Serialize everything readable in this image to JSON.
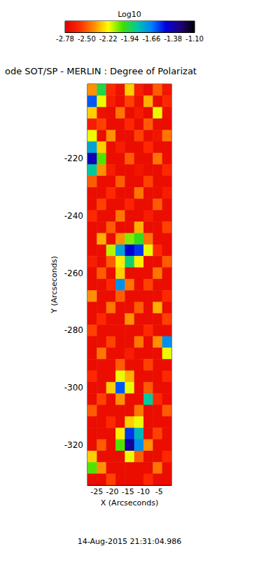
{
  "chart_data": {
    "type": "heatmap",
    "title": "ode SOT/SP - MERLIN : Degree of Polarizat",
    "x_label": "X (Arcseconds)",
    "y_label": "Y (Arcseconds)",
    "annotation": "14-Aug-2015 21:31:04.986",
    "colorbar_label": "Log10",
    "colorbar_range": [
      -2.78,
      -1.1
    ],
    "colorbar_ticks": [
      -2.78,
      {
        "value": -2.5,
        "label": "-2.50"
      },
      -2.22,
      -1.94,
      -1.66,
      -1.38,
      {
        "value": -1.1,
        "label": "-1.10"
      }
    ],
    "xlim": [
      -28,
      -1
    ],
    "ylim": [
      -334,
      -194
    ],
    "xticks": [
      -25,
      -20,
      -15,
      -10,
      -5
    ],
    "yticks": [
      -320,
      -300,
      -280,
      -260,
      -240,
      -220
    ],
    "x": [
      -26.5,
      -23.5,
      -20.5,
      -17.5,
      -14.5,
      -11.5,
      -8.5,
      -5.5,
      -2.5
    ],
    "y": [
      -196,
      -200,
      -204,
      -208,
      -212,
      -216,
      -220,
      -224,
      -228,
      -232,
      -236,
      -240,
      -244,
      -248,
      -252,
      -256,
      -260,
      -264,
      -268,
      -272,
      -276,
      -280,
      -284,
      -288,
      -292,
      -296,
      -300,
      -304,
      -308,
      -312,
      -316,
      -320,
      -324,
      -328,
      -332
    ],
    "z": [
      [
        -2.4,
        -1.95,
        -2.6,
        -2.7,
        -2.3,
        -2.65,
        -2.72,
        -2.5,
        -2.68
      ],
      [
        -1.6,
        -2.2,
        -2.65,
        -2.72,
        -2.55,
        -2.7,
        -2.35,
        -2.72,
        -2.6
      ],
      [
        -2.3,
        -2.7,
        -2.72,
        -2.45,
        -2.72,
        -2.66,
        -2.72,
        -2.2,
        -2.7
      ],
      [
        -2.65,
        -2.55,
        -2.72,
        -2.72,
        -2.6,
        -2.72,
        -2.5,
        -2.72,
        -2.72
      ],
      [
        -2.2,
        -2.72,
        -2.4,
        -2.72,
        -2.72,
        -2.55,
        -2.72,
        -2.68,
        -2.45
      ],
      [
        -1.75,
        -2.3,
        -2.72,
        -2.65,
        -2.72,
        -2.72,
        -2.6,
        -2.72,
        -2.72
      ],
      [
        -1.4,
        -2.05,
        -2.72,
        -2.72,
        -2.5,
        -2.72,
        -2.72,
        -2.45,
        -2.72
      ],
      [
        -1.85,
        -2.4,
        -2.65,
        -2.72,
        -2.72,
        -2.68,
        -2.72,
        -2.72,
        -2.6
      ],
      [
        -2.5,
        -2.72,
        -2.72,
        -2.5,
        -2.72,
        -2.72,
        -2.55,
        -2.72,
        -2.72
      ],
      [
        -2.72,
        -2.72,
        -2.6,
        -2.72,
        -2.72,
        -2.45,
        -2.72,
        -2.72,
        -2.65
      ],
      [
        -2.72,
        -2.55,
        -2.72,
        -2.72,
        -2.62,
        -2.72,
        -2.72,
        -2.5,
        -2.72
      ],
      [
        -2.6,
        -2.72,
        -2.72,
        -2.45,
        -2.72,
        -2.72,
        -2.65,
        -2.72,
        -2.72
      ],
      [
        -2.72,
        -2.72,
        -2.5,
        -2.72,
        -2.72,
        -2.35,
        -2.72,
        -2.72,
        -2.55
      ],
      [
        -2.72,
        -2.35,
        -2.72,
        -2.4,
        -2.1,
        -2.0,
        -2.45,
        -2.72,
        -2.72
      ],
      [
        -2.72,
        -2.72,
        -2.15,
        -1.75,
        -1.45,
        -1.55,
        -2.2,
        -2.6,
        -2.72
      ],
      [
        -2.65,
        -2.72,
        -2.5,
        -2.25,
        -1.9,
        -2.25,
        -2.72,
        -2.72,
        -2.5
      ],
      [
        -2.72,
        -2.5,
        -2.72,
        -2.3,
        -2.72,
        -2.72,
        -2.72,
        -2.45,
        -2.72
      ],
      [
        -2.72,
        -2.72,
        -2.6,
        -1.7,
        -2.45,
        -2.72,
        -2.55,
        -2.72,
        -2.72
      ],
      [
        -2.4,
        -2.72,
        -2.72,
        -2.5,
        -2.72,
        -2.72,
        -2.72,
        -2.72,
        -2.6
      ],
      [
        -2.72,
        -2.72,
        -2.45,
        -2.72,
        -2.72,
        -2.5,
        -2.72,
        -2.35,
        -2.72
      ],
      [
        -2.72,
        -2.6,
        -2.72,
        -2.72,
        -2.4,
        -2.72,
        -2.72,
        -2.72,
        -2.55
      ],
      [
        -2.55,
        -2.72,
        -2.72,
        -2.72,
        -2.72,
        -2.72,
        -2.6,
        -2.72,
        -2.72
      ],
      [
        -2.72,
        -2.72,
        -2.55,
        -2.72,
        -2.72,
        -2.45,
        -2.72,
        -2.4,
        -1.7
      ],
      [
        -2.72,
        -2.45,
        -2.72,
        -2.72,
        -2.65,
        -2.72,
        -2.72,
        -2.72,
        -2.2
      ],
      [
        -2.72,
        -2.72,
        -2.72,
        -2.5,
        -2.72,
        -2.72,
        -2.55,
        -2.72,
        -2.72
      ],
      [
        -2.6,
        -2.72,
        -2.72,
        -2.2,
        -2.35,
        -2.72,
        -2.72,
        -2.72,
        -2.6
      ],
      [
        -2.72,
        -2.72,
        -2.3,
        -1.6,
        -2.2,
        -2.72,
        -2.5,
        -2.72,
        -2.72
      ],
      [
        -2.72,
        -2.55,
        -2.72,
        -2.4,
        -2.72,
        -2.72,
        -1.85,
        -2.6,
        -2.72
      ],
      [
        -2.5,
        -2.72,
        -2.72,
        -2.72,
        -2.72,
        -2.45,
        -2.72,
        -2.72,
        -2.5
      ],
      [
        -2.72,
        -2.72,
        -2.6,
        -2.72,
        -2.3,
        -2.2,
        -2.72,
        -2.72,
        -2.72
      ],
      [
        -2.72,
        -2.72,
        -2.72,
        -2.25,
        -1.55,
        -1.8,
        -2.72,
        -2.55,
        -2.72
      ],
      [
        -2.72,
        -2.5,
        -2.72,
        -2.05,
        -1.35,
        -1.7,
        -2.4,
        -2.72,
        -2.72
      ],
      [
        -2.3,
        -2.72,
        -2.72,
        -2.72,
        -2.2,
        -2.5,
        -2.72,
        -2.72,
        -2.6
      ],
      [
        -2.05,
        -2.4,
        -2.72,
        -2.72,
        -2.72,
        -2.72,
        -2.72,
        -2.45,
        -2.72
      ],
      [
        -2.72,
        -2.72,
        -2.55,
        -2.72,
        -2.72,
        -2.72,
        -2.6,
        -2.72,
        -2.72
      ]
    ]
  }
}
